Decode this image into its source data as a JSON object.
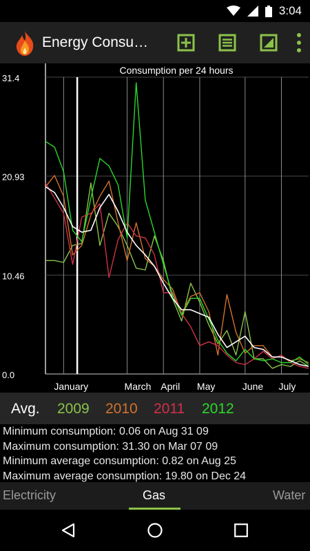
{
  "status_bar": {
    "time": "3:04",
    "icons": [
      "wifi-icon",
      "signal-icon",
      "battery-icon"
    ]
  },
  "app_bar": {
    "title": "Energy Consu…",
    "icons": [
      "flame-icon",
      "add-icon",
      "list-icon",
      "chart-icon",
      "overflow-menu-icon"
    ],
    "accent": "#8bc34a"
  },
  "chart_data": {
    "type": "line",
    "title": "Consumption per 24 hours",
    "y_tick_labels": [
      "31.4",
      "20.93",
      "10.46",
      "0.0"
    ],
    "ylim": [
      0,
      31.4
    ],
    "x_tick_labels": [
      "January",
      "March",
      "April",
      "May",
      "June",
      "July"
    ],
    "x_unit": "week of year",
    "xlim": [
      1,
      30
    ],
    "grid": true,
    "series": [
      {
        "name": "Avg.",
        "color": "#ffffff",
        "x": [
          1,
          2,
          3,
          4,
          5,
          6,
          7,
          8,
          9,
          10,
          11,
          12,
          13,
          14,
          15,
          16,
          17,
          18,
          19,
          20,
          21,
          22,
          23,
          24,
          25,
          26,
          27,
          28,
          29,
          30
        ],
        "values": [
          19.8,
          19.2,
          17.6,
          15.6,
          15.0,
          15.2,
          17.6,
          19.0,
          17.2,
          15.0,
          13.6,
          12.6,
          11.4,
          9.6,
          8.0,
          6.8,
          6.8,
          6.4,
          6.0,
          4.2,
          2.8,
          3.4,
          4.0,
          2.8,
          2.6,
          1.8,
          1.8,
          1.4,
          1.0,
          0.8
        ]
      },
      {
        "name": "2009",
        "color": "#8bc34a",
        "x": [
          1,
          2,
          3,
          4,
          5,
          6,
          7,
          8,
          9,
          10,
          11,
          12,
          13,
          14,
          15,
          16,
          17,
          18,
          19,
          20,
          21,
          22,
          23,
          24,
          25,
          26,
          27,
          28,
          29,
          30
        ],
        "values": [
          12.0,
          12.0,
          11.8,
          13.6,
          13.8,
          20.2,
          13.6,
          17.0,
          15.6,
          13.6,
          11.2,
          11.0,
          14.6,
          12.0,
          8.0,
          5.6,
          9.6,
          7.6,
          5.2,
          3.2,
          4.6,
          2.0,
          6.6,
          1.6,
          1.6,
          0.6,
          1.0,
          0.8,
          1.4,
          0.8
        ]
      },
      {
        "name": "2010",
        "color": "#d2722e",
        "x": [
          1,
          2,
          3,
          4,
          5,
          6,
          7,
          8,
          9,
          10,
          11,
          12,
          13,
          14,
          15,
          16,
          17,
          18,
          19,
          20,
          21,
          22,
          23,
          24,
          25,
          26,
          27,
          28,
          29,
          30
        ],
        "values": [
          19.8,
          21.0,
          18.8,
          12.6,
          13.6,
          16.8,
          18.8,
          20.4,
          16.0,
          12.0,
          16.0,
          12.2,
          11.4,
          10.0,
          9.0,
          6.4,
          8.2,
          8.6,
          6.6,
          2.0,
          8.4,
          4.4,
          2.2,
          3.0,
          3.0,
          1.8,
          1.8,
          1.4,
          1.6,
          1.2
        ]
      },
      {
        "name": "2011",
        "color": "#d0304a",
        "x": [
          1,
          2,
          3,
          4,
          5,
          6,
          7,
          8,
          9,
          10,
          11,
          12,
          13,
          14,
          15,
          16,
          17,
          18,
          19,
          20,
          21,
          22,
          23,
          24,
          25,
          26,
          27,
          28,
          29,
          30
        ],
        "values": [
          20.2,
          18.6,
          17.0,
          11.6,
          16.6,
          17.0,
          18.0,
          10.2,
          14.2,
          16.0,
          14.6,
          14.4,
          12.6,
          8.6,
          8.6,
          6.4,
          5.0,
          3.0,
          3.4,
          3.0,
          2.0,
          1.2,
          1.0,
          1.6,
          2.4,
          1.6,
          2.0,
          1.2,
          0.8,
          0.6
        ]
      },
      {
        "name": "2012",
        "color": "#2bd72b",
        "x": [
          1,
          2,
          3,
          4,
          5,
          6,
          7,
          8,
          9,
          10,
          11,
          12,
          13,
          14,
          15,
          16,
          17,
          18,
          19,
          20,
          21,
          22,
          23,
          24,
          25,
          26,
          27,
          28,
          29,
          30
        ],
        "values": [
          24.6,
          24.0,
          21.4,
          15.2,
          14.0,
          18.6,
          22.8,
          22.0,
          20.0,
          14.4,
          30.8,
          18.4,
          15.0,
          11.6,
          8.4,
          6.2,
          8.0,
          8.0,
          5.8,
          3.6,
          2.2,
          1.4,
          2.6,
          1.6,
          1.4,
          1.6,
          1.2,
          1.2,
          1.8,
          1.0
        ]
      }
    ]
  },
  "legend": {
    "label": "Avg.",
    "years": [
      {
        "label": "2009",
        "color": "#8bc34a"
      },
      {
        "label": "2010",
        "color": "#d2722e"
      },
      {
        "label": "2011",
        "color": "#d0304a"
      },
      {
        "label": "2012",
        "color": "#2bd72b"
      }
    ]
  },
  "stats": {
    "min": "Minimum consumption: 0.06 on Aug 31 09",
    "max": "Maximum consumption: 31.30 on Mar 07 09",
    "min_avg": "Minimum average consumption: 0.82 on Aug 25",
    "max_avg": "Maximum average consumption: 19.80 on Dec 24"
  },
  "tabs": [
    {
      "label": "Electricity",
      "active": false
    },
    {
      "label": "Gas",
      "active": true
    },
    {
      "label": "Water",
      "active": false
    }
  ],
  "nav": {
    "icons": [
      "back-icon",
      "home-icon",
      "recents-icon"
    ]
  }
}
